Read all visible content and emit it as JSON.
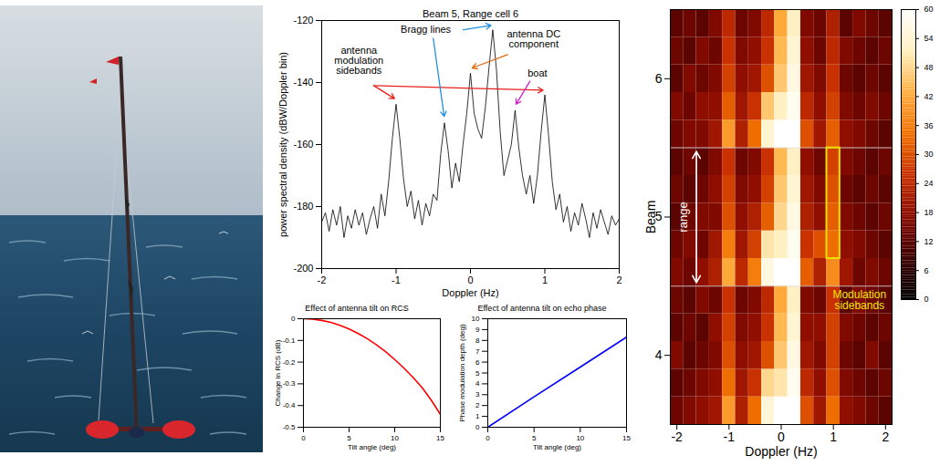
{
  "chart_data": [
    {
      "type": "line",
      "title": "Beam 5, Range cell 6",
      "x_label": "Doppler (Hz)",
      "y_label": "power spectral density (dBW/Doppler bin)",
      "x": [
        -2,
        -1.95,
        -1.9,
        -1.85,
        -1.8,
        -1.75,
        -1.7,
        -1.65,
        -1.6,
        -1.55,
        -1.5,
        -1.45,
        -1.4,
        -1.35,
        -1.3,
        -1.25,
        -1.2,
        -1.15,
        -1.1,
        -1.05,
        -1,
        -0.95,
        -0.9,
        -0.85,
        -0.8,
        -0.75,
        -0.7,
        -0.65,
        -0.6,
        -0.55,
        -0.5,
        -0.45,
        -0.4,
        -0.35,
        -0.3,
        -0.25,
        -0.2,
        -0.15,
        -0.1,
        -0.05,
        0,
        0.05,
        0.1,
        0.15,
        0.2,
        0.25,
        0.3,
        0.35,
        0.4,
        0.45,
        0.5,
        0.55,
        0.6,
        0.65,
        0.7,
        0.75,
        0.8,
        0.85,
        0.9,
        0.95,
        1,
        1.05,
        1.1,
        1.15,
        1.2,
        1.25,
        1.3,
        1.35,
        1.4,
        1.45,
        1.5,
        1.55,
        1.6,
        1.65,
        1.7,
        1.75,
        1.8,
        1.85,
        1.9,
        1.95,
        2
      ],
      "values": [
        -185,
        -182,
        -188,
        -181,
        -186,
        -180,
        -190,
        -183,
        -187,
        -181,
        -186,
        -182,
        -189,
        -184,
        -180,
        -187,
        -176,
        -183,
        -172,
        -158,
        -147,
        -158,
        -171,
        -180,
        -175,
        -184,
        -178,
        -186,
        -179,
        -183,
        -176,
        -178,
        -163,
        -153,
        -162,
        -174,
        -166,
        -172,
        -160,
        -150,
        -137,
        -150,
        -155,
        -158,
        -148,
        -135,
        -123,
        -136,
        -156,
        -170,
        -165,
        -160,
        -149,
        -161,
        -170,
        -176,
        -170,
        -179,
        -170,
        -156,
        -144,
        -157,
        -172,
        -181,
        -176,
        -185,
        -180,
        -188,
        -182,
        -186,
        -179,
        -184,
        -190,
        -182,
        -187,
        -181,
        -185,
        -189,
        -183,
        -186,
        -184
      ],
      "color": "#000000",
      "xlim": [
        -2,
        2
      ],
      "xticks": [
        -2,
        -1,
        0,
        1,
        2
      ],
      "ylim": [
        -200,
        -120
      ],
      "yticks": [
        -200,
        -180,
        -160,
        -140,
        -120
      ],
      "annotations": [
        {
          "text": "antenna modulation sidebands",
          "points_to": [
            -1,
            1
          ]
        },
        {
          "text": "Bragg lines",
          "points_to": [
            -0.35,
            0.3
          ]
        },
        {
          "text": "antenna DC component",
          "points_to": [
            0
          ]
        },
        {
          "text": "boat",
          "points_to": [
            0.6
          ]
        }
      ]
    },
    {
      "type": "line",
      "title": "Effect of antenna tilt on RCS",
      "x_label": "Tilt angle (deg)",
      "y_label": "Change in RCS (dB)",
      "x": [
        0,
        1,
        2,
        3,
        4,
        5,
        6,
        7,
        8,
        9,
        10,
        11,
        12,
        13,
        14,
        15
      ],
      "values": [
        0,
        -0.002,
        -0.008,
        -0.017,
        -0.03,
        -0.047,
        -0.068,
        -0.092,
        -0.12,
        -0.152,
        -0.188,
        -0.227,
        -0.27,
        -0.317,
        -0.375,
        -0.44
      ],
      "color": "#ff0000",
      "xlim": [
        0,
        15
      ],
      "xticks": [
        0,
        5,
        10,
        15
      ],
      "ylim": [
        -0.5,
        0
      ],
      "yticks": [
        -0.5,
        -0.4,
        -0.3,
        -0.2,
        -0.1,
        0
      ]
    },
    {
      "type": "line",
      "title": "Effect of antenna tilt on echo phase",
      "x_label": "Tilt angle (deg)",
      "y_label": "Phase modulation depth (deg)",
      "x": [
        0,
        5,
        10,
        15
      ],
      "values": [
        0,
        2.8,
        5.55,
        8.3
      ],
      "color": "#0000ff",
      "xlim": [
        0,
        15
      ],
      "xticks": [
        0,
        5,
        10,
        15
      ],
      "ylim": [
        0,
        10
      ],
      "yticks": [
        0,
        1,
        2,
        3,
        4,
        5,
        6,
        7,
        8,
        9,
        10
      ]
    },
    {
      "type": "heatmap",
      "x_label": "Doppler (Hz)",
      "y_label": "Beam",
      "x_bins": [
        -2.125,
        -1.875,
        -1.625,
        -1.375,
        -1.125,
        -0.875,
        -0.625,
        -0.375,
        -0.125,
        0.125,
        0.375,
        0.625,
        0.875,
        1.125,
        1.375,
        1.625,
        1.875,
        2.125
      ],
      "y_bins": [
        3.5,
        3.7,
        3.9,
        4.1,
        4.3,
        4.5,
        4.7,
        4.9,
        5.1,
        5.3,
        5.5,
        5.7,
        5.9,
        6.1,
        6.3,
        6.5
      ],
      "cells": [
        [
          14,
          16,
          18,
          20,
          40,
          22,
          34,
          55,
          60,
          60,
          30,
          20,
          34,
          18,
          16,
          14,
          12
        ],
        [
          12,
          14,
          16,
          18,
          34,
          20,
          26,
          48,
          50,
          58,
          24,
          18,
          30,
          16,
          14,
          12,
          14
        ],
        [
          16,
          12,
          14,
          16,
          30,
          18,
          20,
          30,
          46,
          56,
          20,
          16,
          28,
          14,
          12,
          16,
          12
        ],
        [
          12,
          14,
          12,
          18,
          28,
          16,
          18,
          26,
          44,
          54,
          18,
          18,
          28,
          16,
          14,
          12,
          14
        ],
        [
          14,
          12,
          16,
          14,
          26,
          14,
          16,
          24,
          42,
          52,
          16,
          14,
          26,
          12,
          16,
          14,
          12
        ],
        [
          16,
          14,
          18,
          22,
          42,
          24,
          36,
          56,
          60,
          60,
          32,
          22,
          38,
          20,
          14,
          16,
          14
        ],
        [
          14,
          16,
          14,
          20,
          36,
          20,
          28,
          50,
          52,
          58,
          26,
          30,
          34,
          18,
          16,
          14,
          12
        ],
        [
          12,
          14,
          16,
          16,
          30,
          18,
          22,
          32,
          48,
          56,
          22,
          18,
          32,
          16,
          14,
          12,
          14
        ],
        [
          14,
          12,
          14,
          18,
          28,
          16,
          18,
          28,
          46,
          54,
          20,
          16,
          30,
          14,
          12,
          14,
          12
        ],
        [
          12,
          14,
          12,
          16,
          26,
          14,
          16,
          26,
          44,
          52,
          18,
          14,
          28,
          16,
          14,
          12,
          14
        ],
        [
          14,
          16,
          16,
          20,
          40,
          22,
          34,
          54,
          60,
          60,
          30,
          20,
          32,
          18,
          16,
          14,
          12
        ],
        [
          16,
          14,
          18,
          18,
          32,
          20,
          26,
          46,
          52,
          58,
          24,
          18,
          28,
          16,
          14,
          16,
          14
        ],
        [
          12,
          16,
          14,
          16,
          28,
          18,
          20,
          30,
          46,
          56,
          20,
          16,
          26,
          14,
          12,
          14,
          12
        ],
        [
          14,
          12,
          16,
          14,
          26,
          16,
          18,
          26,
          44,
          54,
          18,
          14,
          24,
          16,
          14,
          12,
          14
        ],
        [
          12,
          14,
          12,
          16,
          24,
          14,
          16,
          24,
          42,
          52,
          16,
          14,
          22,
          12,
          16,
          14,
          12
        ]
      ],
      "xlim": [
        -2.125,
        2.125
      ],
      "xticks": [
        -2,
        -1,
        0,
        1,
        2
      ],
      "ylim": [
        3.5,
        6.5
      ],
      "yticks": [
        4,
        5,
        6
      ],
      "colorbar": {
        "lim": [
          0,
          60
        ],
        "ticks": [
          0,
          6,
          12,
          18,
          24,
          30,
          36,
          42,
          48,
          54,
          60
        ]
      },
      "annotations": [
        {
          "text": "range"
        },
        {
          "text": "Modulation sidebands"
        }
      ]
    }
  ]
}
